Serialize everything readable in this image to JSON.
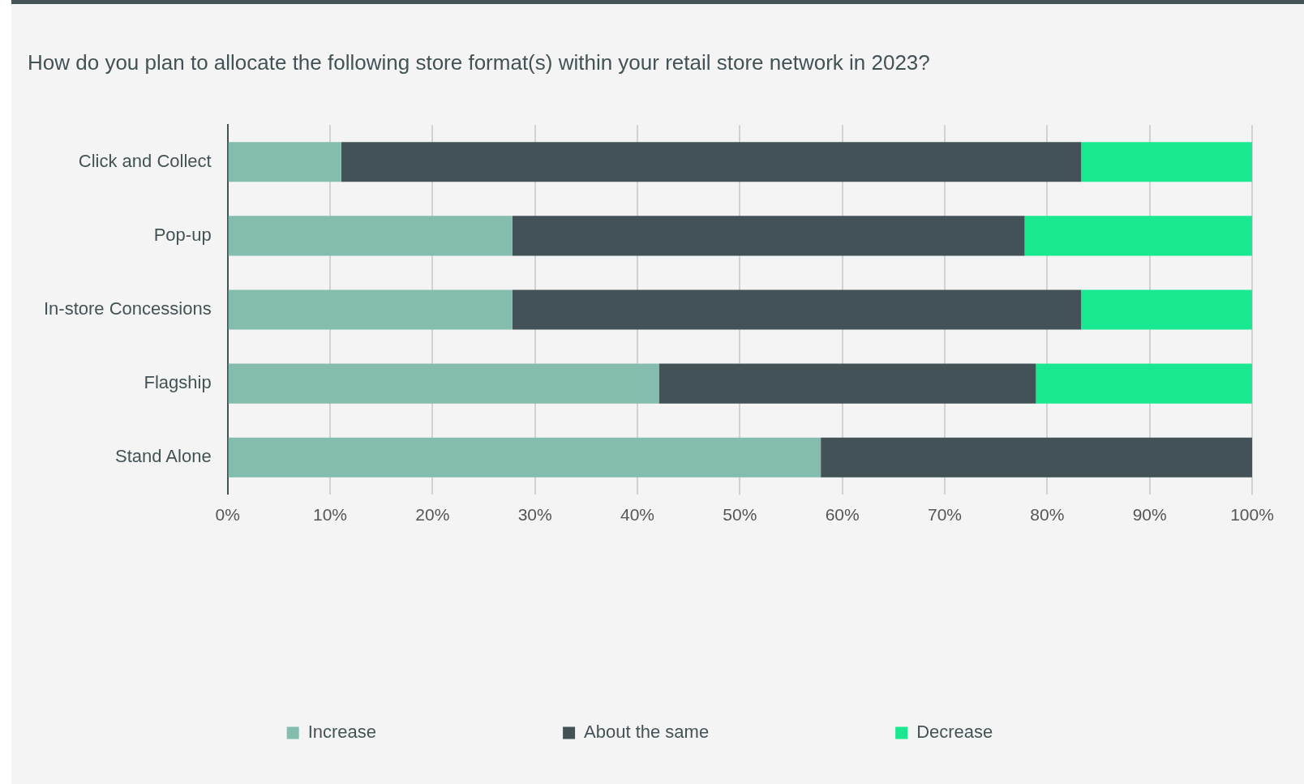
{
  "chart_data": {
    "type": "bar",
    "orientation": "horizontal",
    "stacked": true,
    "title": "How do you plan to allocate the following store format(s) within your retail store network in 2023?",
    "categories": [
      "Click and Collect",
      "Pop-up",
      "In-store Concessions",
      "Flagship",
      "Stand Alone"
    ],
    "series": [
      {
        "name": "Increase",
        "color": "#84bcad",
        "values": [
          11.1,
          27.8,
          27.8,
          42.1,
          57.9
        ]
      },
      {
        "name": "About the same",
        "color": "#435256",
        "values": [
          72.2,
          50,
          55.5,
          36.8,
          42.1
        ]
      },
      {
        "name": "Decrease",
        "color": "#1ae890",
        "values": [
          16.7,
          22.2,
          16.7,
          21.1,
          0
        ]
      }
    ],
    "xlim": [
      0,
      100
    ],
    "xticks": [
      {
        "value": 0,
        "label": "0%"
      },
      {
        "value": 10,
        "label": "10%"
      },
      {
        "value": 20,
        "label": "20%"
      },
      {
        "value": 30,
        "label": "30%"
      },
      {
        "value": 40,
        "label": "40%"
      },
      {
        "value": 50,
        "label": "50%"
      },
      {
        "value": 60,
        "label": "60%"
      },
      {
        "value": 70,
        "label": "70%"
      },
      {
        "value": 80,
        "label": "80%"
      },
      {
        "value": 90,
        "label": "90%"
      },
      {
        "value": 100,
        "label": "100%"
      }
    ],
    "grid": "x",
    "legend": "bottom"
  }
}
